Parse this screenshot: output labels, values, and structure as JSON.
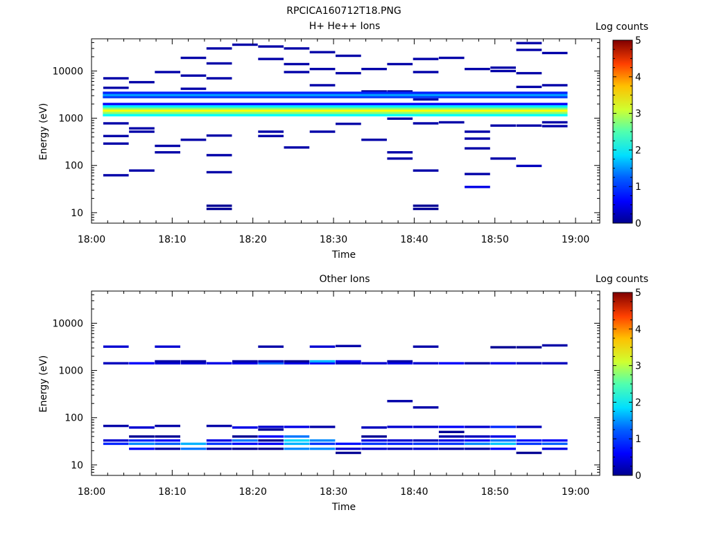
{
  "figure_title": "RPCICA160712T18.PNG",
  "colorbar": {
    "label": "Log counts",
    "ticks": [
      "0",
      "1",
      "2",
      "3",
      "4",
      "5"
    ],
    "min": 0,
    "max": 5
  },
  "chart_data": [
    {
      "type": "heatmap",
      "title": "H+ He++ Ions",
      "xlabel": "Time",
      "ylabel": "Energy (eV)",
      "x_ticks": [
        "18:00",
        "18:10",
        "18:20",
        "18:30",
        "18:40",
        "18:50",
        "19:00"
      ],
      "xlim_minutes": [
        0,
        63
      ],
      "y_ticks": [
        "10",
        "100",
        "1000",
        "10000"
      ],
      "ylim_eV": [
        6,
        48000
      ],
      "yscale": "log",
      "column_width_minutes": 3.2,
      "cells": [
        {
          "t": 3.0,
          "e": 62,
          "v": 0.2
        },
        {
          "t": 3.0,
          "e": 290,
          "v": 0.2
        },
        {
          "t": 3.0,
          "e": 420,
          "v": 0.2
        },
        {
          "t": 3.0,
          "e": 780,
          "v": 0.2
        },
        {
          "t": 3.0,
          "e": 4400,
          "v": 0.2
        },
        {
          "t": 3.0,
          "e": 7000,
          "v": 0.2
        },
        {
          "t": 6.2,
          "e": 78,
          "v": 0.2
        },
        {
          "t": 6.2,
          "e": 520,
          "v": 0.2
        },
        {
          "t": 6.2,
          "e": 610,
          "v": 0.2
        },
        {
          "t": 6.2,
          "e": 5800,
          "v": 0.2
        },
        {
          "t": 9.4,
          "e": 190,
          "v": 0.2
        },
        {
          "t": 9.4,
          "e": 260,
          "v": 0.2
        },
        {
          "t": 9.4,
          "e": 9500,
          "v": 0.2
        },
        {
          "t": 12.6,
          "e": 350,
          "v": 0.2
        },
        {
          "t": 12.6,
          "e": 4200,
          "v": 0.2
        },
        {
          "t": 12.6,
          "e": 8000,
          "v": 0.2
        },
        {
          "t": 12.6,
          "e": 19000,
          "v": 0.2
        },
        {
          "t": 15.8,
          "e": 12,
          "v": 0.1
        },
        {
          "t": 15.8,
          "e": 14,
          "v": 0.1
        },
        {
          "t": 15.8,
          "e": 72,
          "v": 0.2
        },
        {
          "t": 15.8,
          "e": 165,
          "v": 0.2
        },
        {
          "t": 15.8,
          "e": 430,
          "v": 0.2
        },
        {
          "t": 15.8,
          "e": 7000,
          "v": 0.2
        },
        {
          "t": 15.8,
          "e": 14500,
          "v": 0.2
        },
        {
          "t": 15.8,
          "e": 30000,
          "v": 0.2
        },
        {
          "t": 19.0,
          "e": 36000,
          "v": 0.2
        },
        {
          "t": 22.2,
          "e": 420,
          "v": 0.2
        },
        {
          "t": 22.2,
          "e": 520,
          "v": 0.2
        },
        {
          "t": 22.2,
          "e": 18000,
          "v": 0.2
        },
        {
          "t": 22.2,
          "e": 33000,
          "v": 0.2
        },
        {
          "t": 25.4,
          "e": 240,
          "v": 0.2
        },
        {
          "t": 25.4,
          "e": 9500,
          "v": 0.2
        },
        {
          "t": 25.4,
          "e": 14000,
          "v": 0.2
        },
        {
          "t": 25.4,
          "e": 30000,
          "v": 0.2
        },
        {
          "t": 28.6,
          "e": 520,
          "v": 0.2
        },
        {
          "t": 28.6,
          "e": 5000,
          "v": 0.2
        },
        {
          "t": 28.6,
          "e": 11000,
          "v": 0.2
        },
        {
          "t": 28.6,
          "e": 25000,
          "v": 0.2
        },
        {
          "t": 31.8,
          "e": 760,
          "v": 0.2
        },
        {
          "t": 31.8,
          "e": 9000,
          "v": 0.2
        },
        {
          "t": 31.8,
          "e": 21000,
          "v": 0.2
        },
        {
          "t": 35.0,
          "e": 350,
          "v": 0.2
        },
        {
          "t": 35.0,
          "e": 11000,
          "v": 0.2
        },
        {
          "t": 35.0,
          "e": 3300,
          "v": 0.1
        },
        {
          "t": 35.0,
          "e": 3700,
          "v": 0.1
        },
        {
          "t": 38.2,
          "e": 140,
          "v": 0.2
        },
        {
          "t": 38.2,
          "e": 190,
          "v": 0.2
        },
        {
          "t": 38.2,
          "e": 980,
          "v": 0.2
        },
        {
          "t": 38.2,
          "e": 14000,
          "v": 0.2
        },
        {
          "t": 38.2,
          "e": 3300,
          "v": 0.1
        },
        {
          "t": 38.2,
          "e": 3700,
          "v": 0.1
        },
        {
          "t": 41.4,
          "e": 12,
          "v": 0.1
        },
        {
          "t": 41.4,
          "e": 14,
          "v": 0.1
        },
        {
          "t": 41.4,
          "e": 78,
          "v": 0.2
        },
        {
          "t": 41.4,
          "e": 780,
          "v": 0.2
        },
        {
          "t": 41.4,
          "e": 2500,
          "v": 0.2
        },
        {
          "t": 41.4,
          "e": 9500,
          "v": 0.2
        },
        {
          "t": 41.4,
          "e": 18000,
          "v": 0.2
        },
        {
          "t": 44.6,
          "e": 820,
          "v": 0.2
        },
        {
          "t": 44.6,
          "e": 3100,
          "v": 0.1
        },
        {
          "t": 44.6,
          "e": 19000,
          "v": 0.2
        },
        {
          "t": 47.8,
          "e": 35,
          "v": 0.5
        },
        {
          "t": 47.8,
          "e": 66,
          "v": 0.2
        },
        {
          "t": 47.8,
          "e": 230,
          "v": 0.2
        },
        {
          "t": 47.8,
          "e": 370,
          "v": 0.2
        },
        {
          "t": 47.8,
          "e": 520,
          "v": 0.2
        },
        {
          "t": 47.8,
          "e": 11000,
          "v": 0.2
        },
        {
          "t": 51.0,
          "e": 140,
          "v": 0.2
        },
        {
          "t": 51.0,
          "e": 700,
          "v": 0.2
        },
        {
          "t": 51.0,
          "e": 10000,
          "v": 0.2
        },
        {
          "t": 51.0,
          "e": 11800,
          "v": 0.2
        },
        {
          "t": 54.2,
          "e": 98,
          "v": 0.3
        },
        {
          "t": 54.2,
          "e": 700,
          "v": 0.2
        },
        {
          "t": 54.2,
          "e": 4600,
          "v": 0.2
        },
        {
          "t": 54.2,
          "e": 9000,
          "v": 0.2
        },
        {
          "t": 54.2,
          "e": 28000,
          "v": 0.2
        },
        {
          "t": 54.2,
          "e": 39000,
          "v": 0.2
        },
        {
          "t": 57.4,
          "e": 680,
          "v": 0.2
        },
        {
          "t": 57.4,
          "e": 820,
          "v": 0.2
        },
        {
          "t": 57.4,
          "e": 5000,
          "v": 0.2
        },
        {
          "t": 57.4,
          "e": 24000,
          "v": 0.2
        },
        {
          "t": 57.4,
          "e": 3300,
          "v": 0.1
        }
      ],
      "bands": [
        {
          "t_start": 1.4,
          "t_end": 59.0,
          "e": 1160,
          "v": 1.9
        },
        {
          "t_start": 1.4,
          "t_end": 59.0,
          "e": 1300,
          "v": 2.6
        },
        {
          "t_start": 1.4,
          "t_end": 59.0,
          "e": 1450,
          "v": 3.1
        },
        {
          "t_start": 1.4,
          "t_end": 59.0,
          "e": 1620,
          "v": 2.5
        },
        {
          "t_start": 1.4,
          "t_end": 59.0,
          "e": 1780,
          "v": 1.8
        },
        {
          "t_start": 1.4,
          "t_end": 59.0,
          "e": 2000,
          "v": 0.6
        },
        {
          "t_start": 1.4,
          "t_end": 59.0,
          "e": 2800,
          "v": 0.9
        },
        {
          "t_start": 1.4,
          "t_end": 59.0,
          "e": 3100,
          "v": 1.4
        },
        {
          "t_start": 1.4,
          "t_end": 59.0,
          "e": 3450,
          "v": 0.8
        }
      ]
    },
    {
      "type": "heatmap",
      "title": "Other Ions",
      "xlabel": "Time",
      "ylabel": "Energy (eV)",
      "x_ticks": [
        "18:00",
        "18:10",
        "18:20",
        "18:30",
        "18:40",
        "18:50",
        "19:00"
      ],
      "xlim_minutes": [
        0,
        63
      ],
      "y_ticks": [
        "10",
        "100",
        "1000",
        "10000"
      ],
      "ylim_eV": [
        6,
        48000
      ],
      "yscale": "log",
      "column_width_minutes": 3.2,
      "cells": [
        {
          "t": 3.0,
          "e": 28,
          "v": 0.8
        },
        {
          "t": 3.0,
          "e": 33,
          "v": 0.4
        },
        {
          "t": 3.0,
          "e": 67,
          "v": 0.2
        },
        {
          "t": 3.0,
          "e": 1420,
          "v": 0.3
        },
        {
          "t": 3.0,
          "e": 3200,
          "v": 0.4
        },
        {
          "t": 6.2,
          "e": 22,
          "v": 0.6
        },
        {
          "t": 6.2,
          "e": 28,
          "v": 1.3
        },
        {
          "t": 6.2,
          "e": 33,
          "v": 0.8
        },
        {
          "t": 6.2,
          "e": 40,
          "v": 0.1
        },
        {
          "t": 6.2,
          "e": 62,
          "v": 0.4
        },
        {
          "t": 6.2,
          "e": 1420,
          "v": 0.6
        },
        {
          "t": 9.4,
          "e": 22,
          "v": 0.2
        },
        {
          "t": 9.4,
          "e": 28,
          "v": 1.1
        },
        {
          "t": 9.4,
          "e": 33,
          "v": 0.6
        },
        {
          "t": 9.4,
          "e": 40,
          "v": 0.1
        },
        {
          "t": 9.4,
          "e": 67,
          "v": 0.2
        },
        {
          "t": 9.4,
          "e": 1420,
          "v": 0.4
        },
        {
          "t": 9.4,
          "e": 1560,
          "v": 0.2
        },
        {
          "t": 9.4,
          "e": 3200,
          "v": 0.4
        },
        {
          "t": 12.6,
          "e": 22,
          "v": 1.2
        },
        {
          "t": 12.6,
          "e": 28,
          "v": 1.5
        },
        {
          "t": 12.6,
          "e": 1420,
          "v": 0.4
        },
        {
          "t": 12.6,
          "e": 1560,
          "v": 0.2
        },
        {
          "t": 15.8,
          "e": 22,
          "v": 0.2
        },
        {
          "t": 15.8,
          "e": 28,
          "v": 0.9
        },
        {
          "t": 15.8,
          "e": 33,
          "v": 0.5
        },
        {
          "t": 15.8,
          "e": 67,
          "v": 0.2
        },
        {
          "t": 15.8,
          "e": 1420,
          "v": 0.5
        },
        {
          "t": 19.0,
          "e": 22,
          "v": 0.1
        },
        {
          "t": 19.0,
          "e": 28,
          "v": 0.7
        },
        {
          "t": 19.0,
          "e": 33,
          "v": 1.2
        },
        {
          "t": 19.0,
          "e": 40,
          "v": 0.1
        },
        {
          "t": 19.0,
          "e": 62,
          "v": 0.5
        },
        {
          "t": 19.0,
          "e": 1420,
          "v": 0.5
        },
        {
          "t": 19.0,
          "e": 1560,
          "v": 0.2
        },
        {
          "t": 22.2,
          "e": 22,
          "v": 0.1
        },
        {
          "t": 22.2,
          "e": 28,
          "v": 0.6
        },
        {
          "t": 22.2,
          "e": 33,
          "v": 0.1
        },
        {
          "t": 22.2,
          "e": 40,
          "v": 0.6
        },
        {
          "t": 22.2,
          "e": 56,
          "v": 0.1
        },
        {
          "t": 22.2,
          "e": 64,
          "v": 0.4
        },
        {
          "t": 22.2,
          "e": 1420,
          "v": 1.1
        },
        {
          "t": 22.2,
          "e": 1560,
          "v": 0.3
        },
        {
          "t": 22.2,
          "e": 3200,
          "v": 0.2
        },
        {
          "t": 25.4,
          "e": 22,
          "v": 1.3
        },
        {
          "t": 25.4,
          "e": 28,
          "v": 1.5
        },
        {
          "t": 25.4,
          "e": 33,
          "v": 1.7
        },
        {
          "t": 25.4,
          "e": 40,
          "v": 1.2
        },
        {
          "t": 25.4,
          "e": 64,
          "v": 0.5
        },
        {
          "t": 25.4,
          "e": 1420,
          "v": 0.5
        },
        {
          "t": 25.4,
          "e": 1560,
          "v": 0.1
        },
        {
          "t": 28.6,
          "e": 22,
          "v": 1.3
        },
        {
          "t": 28.6,
          "e": 28,
          "v": 0.9
        },
        {
          "t": 28.6,
          "e": 33,
          "v": 1.3
        },
        {
          "t": 28.6,
          "e": 64,
          "v": 0.2
        },
        {
          "t": 28.6,
          "e": 1420,
          "v": 0.6
        },
        {
          "t": 28.6,
          "e": 1560,
          "v": 1.5
        },
        {
          "t": 28.6,
          "e": 3200,
          "v": 0.4
        },
        {
          "t": 31.8,
          "e": 18,
          "v": 0.1
        },
        {
          "t": 31.8,
          "e": 22,
          "v": 0.4
        },
        {
          "t": 31.8,
          "e": 28,
          "v": 0.7
        },
        {
          "t": 31.8,
          "e": 1420,
          "v": 0.3
        },
        {
          "t": 31.8,
          "e": 1560,
          "v": 0.5
        },
        {
          "t": 31.8,
          "e": 3300,
          "v": 0.2
        },
        {
          "t": 35.0,
          "e": 22,
          "v": 0.4
        },
        {
          "t": 35.0,
          "e": 28,
          "v": 0.9
        },
        {
          "t": 35.0,
          "e": 33,
          "v": 0.5
        },
        {
          "t": 35.0,
          "e": 40,
          "v": 0.1
        },
        {
          "t": 35.0,
          "e": 62,
          "v": 0.3
        },
        {
          "t": 35.0,
          "e": 1420,
          "v": 0.4
        },
        {
          "t": 38.2,
          "e": 22,
          "v": 0.3
        },
        {
          "t": 38.2,
          "e": 28,
          "v": 0.8
        },
        {
          "t": 38.2,
          "e": 33,
          "v": 0.4
        },
        {
          "t": 38.2,
          "e": 64,
          "v": 0.4
        },
        {
          "t": 38.2,
          "e": 225,
          "v": 0.2
        },
        {
          "t": 38.2,
          "e": 1420,
          "v": 0.5
        },
        {
          "t": 38.2,
          "e": 1560,
          "v": 0.2
        },
        {
          "t": 41.4,
          "e": 22,
          "v": 0.4
        },
        {
          "t": 41.4,
          "e": 28,
          "v": 0.9
        },
        {
          "t": 41.4,
          "e": 33,
          "v": 0.3
        },
        {
          "t": 41.4,
          "e": 64,
          "v": 0.4
        },
        {
          "t": 41.4,
          "e": 165,
          "v": 0.2
        },
        {
          "t": 41.4,
          "e": 1420,
          "v": 0.4
        },
        {
          "t": 41.4,
          "e": 3200,
          "v": 0.2
        },
        {
          "t": 44.6,
          "e": 22,
          "v": 0.2
        },
        {
          "t": 44.6,
          "e": 28,
          "v": 0.9
        },
        {
          "t": 44.6,
          "e": 33,
          "v": 0.5
        },
        {
          "t": 44.6,
          "e": 40,
          "v": 0.2
        },
        {
          "t": 44.6,
          "e": 50,
          "v": 0.1
        },
        {
          "t": 44.6,
          "e": 64,
          "v": 0.6
        },
        {
          "t": 44.6,
          "e": 1420,
          "v": 0.6
        },
        {
          "t": 47.8,
          "e": 22,
          "v": 0.2
        },
        {
          "t": 47.8,
          "e": 28,
          "v": 1.3
        },
        {
          "t": 47.8,
          "e": 33,
          "v": 0.7
        },
        {
          "t": 47.8,
          "e": 40,
          "v": 0.3
        },
        {
          "t": 47.8,
          "e": 64,
          "v": 0.4
        },
        {
          "t": 47.8,
          "e": 1420,
          "v": 0.2
        },
        {
          "t": 51.0,
          "e": 22,
          "v": 0.6
        },
        {
          "t": 51.0,
          "e": 28,
          "v": 1.6
        },
        {
          "t": 51.0,
          "e": 33,
          "v": 1.2
        },
        {
          "t": 51.0,
          "e": 40,
          "v": 0.5
        },
        {
          "t": 51.0,
          "e": 64,
          "v": 0.8
        },
        {
          "t": 51.0,
          "e": 1420,
          "v": 0.5
        },
        {
          "t": 51.0,
          "e": 3100,
          "v": 0.1
        },
        {
          "t": 54.2,
          "e": 18,
          "v": 0.1
        },
        {
          "t": 54.2,
          "e": 28,
          "v": 0.9
        },
        {
          "t": 54.2,
          "e": 33,
          "v": 0.7
        },
        {
          "t": 54.2,
          "e": 64,
          "v": 0.3
        },
        {
          "t": 54.2,
          "e": 1420,
          "v": 0.3
        },
        {
          "t": 54.2,
          "e": 3100,
          "v": 0.1
        },
        {
          "t": 57.4,
          "e": 22,
          "v": 0.5
        },
        {
          "t": 57.4,
          "e": 28,
          "v": 1.1
        },
        {
          "t": 57.4,
          "e": 33,
          "v": 0.6
        },
        {
          "t": 57.4,
          "e": 1420,
          "v": 0.3
        },
        {
          "t": 57.4,
          "e": 3400,
          "v": 0.2
        }
      ],
      "bands": []
    }
  ]
}
